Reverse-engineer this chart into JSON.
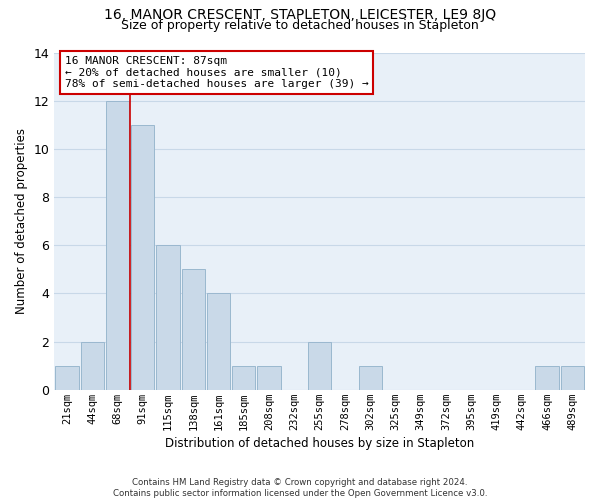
{
  "title": "16, MANOR CRESCENT, STAPLETON, LEICESTER, LE9 8JQ",
  "subtitle": "Size of property relative to detached houses in Stapleton",
  "xlabel": "Distribution of detached houses by size in Stapleton",
  "ylabel": "Number of detached properties",
  "bar_labels": [
    "21sqm",
    "44sqm",
    "68sqm",
    "91sqm",
    "115sqm",
    "138sqm",
    "161sqm",
    "185sqm",
    "208sqm",
    "232sqm",
    "255sqm",
    "278sqm",
    "302sqm",
    "325sqm",
    "349sqm",
    "372sqm",
    "395sqm",
    "419sqm",
    "442sqm",
    "466sqm",
    "489sqm"
  ],
  "bar_values": [
    1,
    2,
    12,
    11,
    6,
    5,
    4,
    1,
    1,
    0,
    2,
    0,
    1,
    0,
    0,
    0,
    0,
    0,
    0,
    1,
    1
  ],
  "bar_color": "#c9d9e8",
  "bar_edge_color": "#9ab8cf",
  "annotation_line1": "16 MANOR CRESCENT: 87sqm",
  "annotation_line2": "← 20% of detached houses are smaller (10)",
  "annotation_line3": "78% of semi-detached houses are larger (39) →",
  "annotation_box_edge_color": "#cc0000",
  "vline_color": "#cc0000",
  "vline_position": 2.5,
  "ylim": [
    0,
    14
  ],
  "yticks": [
    0,
    2,
    4,
    6,
    8,
    10,
    12,
    14
  ],
  "grid_color": "#c8d8e8",
  "bg_color": "#e8f0f8",
  "title_fontsize": 10,
  "subtitle_fontsize": 9,
  "footer_line1": "Contains HM Land Registry data © Crown copyright and database right 2024.",
  "footer_line2": "Contains public sector information licensed under the Open Government Licence v3.0."
}
